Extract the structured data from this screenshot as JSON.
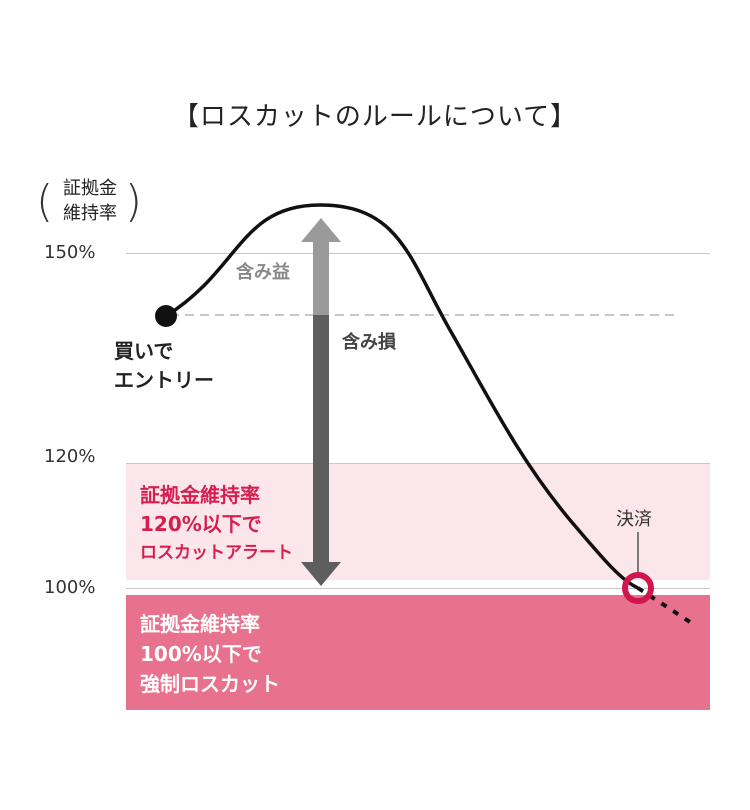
{
  "title": "【ロスカットのルールについて】",
  "y_axis": {
    "label_line1": "証拠金",
    "label_line2": "維持率",
    "ticks": [
      "150%",
      "120%",
      "100%"
    ]
  },
  "entry": {
    "line1": "買いで",
    "line2": "エントリー"
  },
  "gain_label": "含み益",
  "loss_label": "含み損",
  "settle_label": "決済",
  "alert_zone": {
    "line1": "証拠金維持率",
    "line2": "120%以下で",
    "line3": "ロスカットアラート"
  },
  "cut_zone": {
    "line1": "証拠金維持率",
    "line2": "100%以下で",
    "line3": "強制ロスカット"
  },
  "colors": {
    "alert_bg": "#fbe6ec",
    "alert_text": "#d61f4f",
    "cut_bg": "#e8718e",
    "marker": "#d0164a",
    "arrow_gain": "#9a9a9a",
    "arrow_loss": "#5e5e5e"
  }
}
